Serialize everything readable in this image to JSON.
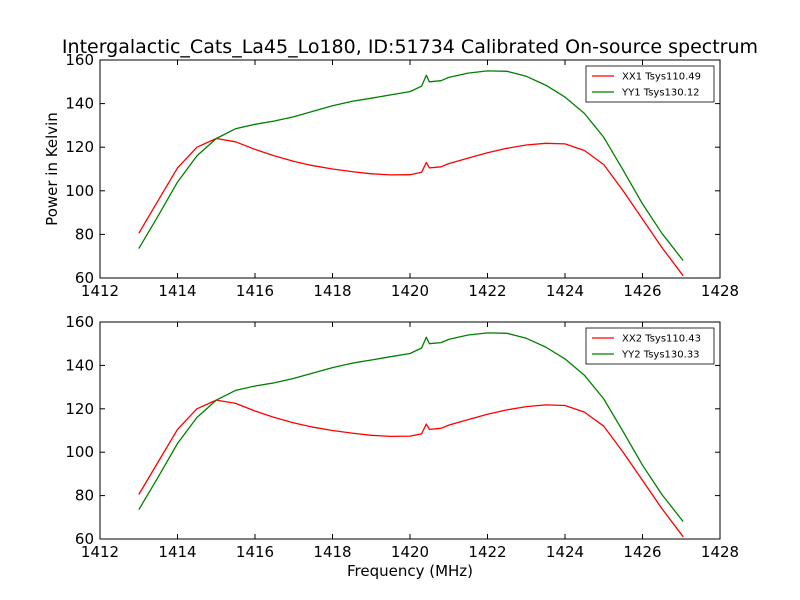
{
  "figure": {
    "title": "Intergalactic_Cats_La45_Lo180, ID:51734 Calibrated On-source spectrum"
  },
  "colors": {
    "xx": "#ff0000",
    "yy": "#008000",
    "axes": "#000000",
    "background": "#ffffff"
  },
  "chart_data": [
    {
      "type": "line",
      "title": "Intergalactic_Cats_La45_Lo180, ID:51734 Calibrated On-source spectrum",
      "xlabel": "",
      "ylabel": "Power in Kelvin",
      "xlim": [
        1412,
        1428
      ],
      "ylim": [
        60,
        160
      ],
      "xticks": [
        1412,
        1414,
        1416,
        1418,
        1420,
        1422,
        1424,
        1426,
        1428
      ],
      "yticks": [
        60,
        80,
        100,
        120,
        140,
        160
      ],
      "grid": false,
      "legend_position": "top-right",
      "series": [
        {
          "name": "XX1 Tsys110.49",
          "color": "#ff0000",
          "x": [
            1413.0,
            1413.5,
            1414.0,
            1414.5,
            1415.0,
            1415.5,
            1416.0,
            1416.5,
            1417.0,
            1417.5,
            1418.0,
            1418.5,
            1419.0,
            1419.5,
            1420.0,
            1420.3,
            1420.42,
            1420.5,
            1420.8,
            1421.0,
            1421.5,
            1422.0,
            1422.5,
            1423.0,
            1423.5,
            1424.0,
            1424.5,
            1425.0,
            1425.5,
            1426.0,
            1426.5,
            1427.05
          ],
          "y": [
            80.5,
            95.5,
            110.5,
            120.0,
            124.0,
            122.5,
            119.0,
            116.0,
            113.5,
            111.5,
            110.0,
            108.8,
            107.8,
            107.3,
            107.4,
            108.5,
            113.0,
            110.5,
            111.0,
            112.5,
            115.0,
            117.5,
            119.5,
            121.0,
            121.8,
            121.5,
            118.5,
            112.0,
            100.0,
            87.0,
            74.0,
            61.0
          ]
        },
        {
          "name": "YY1 Tsys130.12",
          "color": "#008000",
          "x": [
            1413.0,
            1413.5,
            1414.0,
            1414.5,
            1415.0,
            1415.5,
            1416.0,
            1416.5,
            1417.0,
            1417.5,
            1418.0,
            1418.5,
            1419.0,
            1419.5,
            1420.0,
            1420.3,
            1420.42,
            1420.5,
            1420.8,
            1421.0,
            1421.5,
            1422.0,
            1422.5,
            1423.0,
            1423.5,
            1424.0,
            1424.5,
            1425.0,
            1425.5,
            1426.0,
            1426.5,
            1427.05
          ],
          "y": [
            73.5,
            88.5,
            104.0,
            116.0,
            124.0,
            128.5,
            130.5,
            132.0,
            134.0,
            136.5,
            139.0,
            141.0,
            142.5,
            144.0,
            145.5,
            148.0,
            153.0,
            150.0,
            150.5,
            152.0,
            154.0,
            155.0,
            154.8,
            152.5,
            148.5,
            143.0,
            135.5,
            124.5,
            109.5,
            94.0,
            80.5,
            68.0
          ]
        }
      ]
    },
    {
      "type": "line",
      "title": "",
      "xlabel": "Frequency (MHz)",
      "ylabel": "",
      "xlim": [
        1412,
        1428
      ],
      "ylim": [
        60,
        160
      ],
      "xticks": [
        1412,
        1414,
        1416,
        1418,
        1420,
        1422,
        1424,
        1426,
        1428
      ],
      "yticks": [
        60,
        80,
        100,
        120,
        140,
        160
      ],
      "grid": false,
      "legend_position": "top-right",
      "series": [
        {
          "name": "XX2 Tsys110.43",
          "color": "#ff0000",
          "x": [
            1413.0,
            1413.5,
            1414.0,
            1414.5,
            1415.0,
            1415.5,
            1416.0,
            1416.5,
            1417.0,
            1417.5,
            1418.0,
            1418.5,
            1419.0,
            1419.5,
            1420.0,
            1420.3,
            1420.42,
            1420.5,
            1420.8,
            1421.0,
            1421.5,
            1422.0,
            1422.5,
            1423.0,
            1423.5,
            1424.0,
            1424.5,
            1425.0,
            1425.5,
            1426.0,
            1426.5,
            1427.05
          ],
          "y": [
            80.5,
            95.5,
            110.5,
            120.0,
            124.0,
            122.5,
            119.0,
            116.0,
            113.5,
            111.5,
            110.0,
            108.8,
            107.8,
            107.3,
            107.4,
            108.5,
            113.0,
            110.5,
            111.0,
            112.5,
            115.0,
            117.5,
            119.5,
            121.0,
            121.8,
            121.5,
            118.5,
            112.0,
            100.0,
            87.0,
            74.0,
            61.0
          ]
        },
        {
          "name": "YY2 Tsys130.33",
          "color": "#008000",
          "x": [
            1413.0,
            1413.5,
            1414.0,
            1414.5,
            1415.0,
            1415.5,
            1416.0,
            1416.5,
            1417.0,
            1417.5,
            1418.0,
            1418.5,
            1419.0,
            1419.5,
            1420.0,
            1420.3,
            1420.42,
            1420.5,
            1420.8,
            1421.0,
            1421.5,
            1422.0,
            1422.5,
            1423.0,
            1423.5,
            1424.0,
            1424.5,
            1425.0,
            1425.5,
            1426.0,
            1426.5,
            1427.05
          ],
          "y": [
            73.5,
            88.5,
            104.0,
            116.0,
            124.0,
            128.5,
            130.5,
            132.0,
            134.0,
            136.5,
            139.0,
            141.0,
            142.5,
            144.0,
            145.5,
            148.0,
            153.0,
            150.0,
            150.5,
            152.0,
            154.0,
            155.0,
            154.8,
            152.5,
            148.5,
            143.0,
            135.5,
            124.5,
            109.5,
            94.0,
            80.5,
            68.0
          ]
        }
      ]
    }
  ]
}
